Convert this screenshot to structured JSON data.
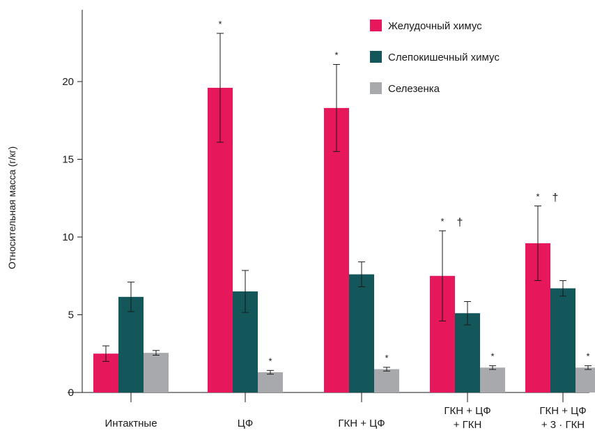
{
  "chart_data": {
    "type": "bar",
    "ylabel": "Относительная масса (г/кг)",
    "ylim": [
      0,
      24
    ],
    "yticks": [
      0,
      5,
      10,
      15,
      20
    ],
    "grid": false,
    "legend_position": "top-right",
    "categories": [
      [
        "Интактные"
      ],
      [
        "ЦФ"
      ],
      [
        "ГКН + ЦФ"
      ],
      [
        "ГКН + ЦФ",
        "+ ГКН"
      ],
      [
        "ГКН + ЦФ",
        "+ 3 · ГКН"
      ]
    ],
    "series": [
      {
        "name": "Желудочный химус",
        "color": "#e6175b",
        "values": [
          2.5,
          19.6,
          18.3,
          7.5,
          9.6
        ],
        "err": [
          0.5,
          3.5,
          2.8,
          2.9,
          2.4
        ],
        "marks": [
          "",
          "*",
          "*",
          "*  †",
          "*  †"
        ]
      },
      {
        "name": "Слепокишечный химус",
        "color": "#13575b",
        "values": [
          6.15,
          6.5,
          7.6,
          5.1,
          6.7
        ],
        "err": [
          0.95,
          1.35,
          0.8,
          0.75,
          0.5
        ],
        "marks": [
          "",
          "",
          "",
          "",
          ""
        ]
      },
      {
        "name": "Селезенка",
        "color": "#a7a9ac",
        "values": [
          2.55,
          1.3,
          1.5,
          1.6,
          1.6
        ],
        "err": [
          0.15,
          0.12,
          0.12,
          0.12,
          0.12
        ],
        "marks": [
          "",
          "*",
          "*",
          "*",
          "*"
        ]
      }
    ]
  }
}
